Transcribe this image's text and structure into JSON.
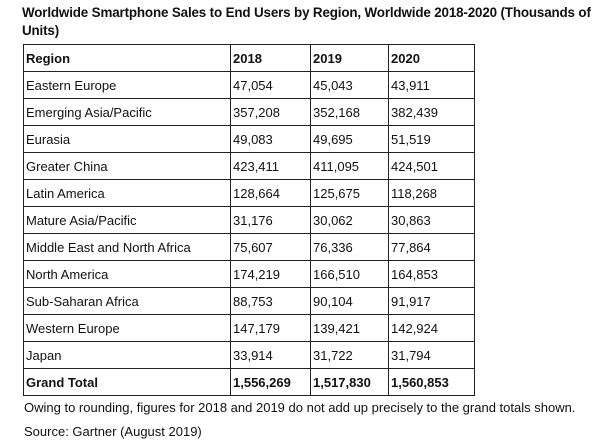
{
  "title": "Worldwide Smartphone Sales to End Users by Region, Worldwide 2018-2020 (Thousands of Units)",
  "table": {
    "headers": [
      "Region",
      "2018",
      "2019",
      "2020"
    ],
    "rows": [
      [
        "Eastern Europe",
        "47,054",
        "45,043",
        "43,911"
      ],
      [
        "Emerging Asia/Pacific",
        "357,208",
        "352,168",
        "382,439"
      ],
      [
        "Eurasia",
        "49,083",
        "49,695",
        "51,519"
      ],
      [
        "Greater China",
        "423,411",
        "411,095",
        "424,501"
      ],
      [
        "Latin America",
        "128,664",
        "125,675",
        "118,268"
      ],
      [
        "Mature Asia/Pacific",
        "31,176",
        "30,062",
        "30,863"
      ],
      [
        "Middle East and North Africa",
        "75,607",
        "76,336",
        "77,864"
      ],
      [
        "North America",
        "174,219",
        "166,510",
        "164,853"
      ],
      [
        "Sub-Saharan Africa",
        "88,753",
        "90,104",
        "91,917"
      ],
      [
        "Western Europe",
        "147,179",
        "139,421",
        "142,924"
      ],
      [
        "Japan",
        "33,914",
        "31,722",
        "31,794"
      ]
    ],
    "total": [
      "Grand Total",
      "1,556,269",
      "1,517,830",
      "1,560,853"
    ]
  },
  "note": "Owing to rounding, figures for 2018 and 2019 do not add up precisely to the grand totals shown.",
  "source": "Source: Gartner (August 2019)"
}
